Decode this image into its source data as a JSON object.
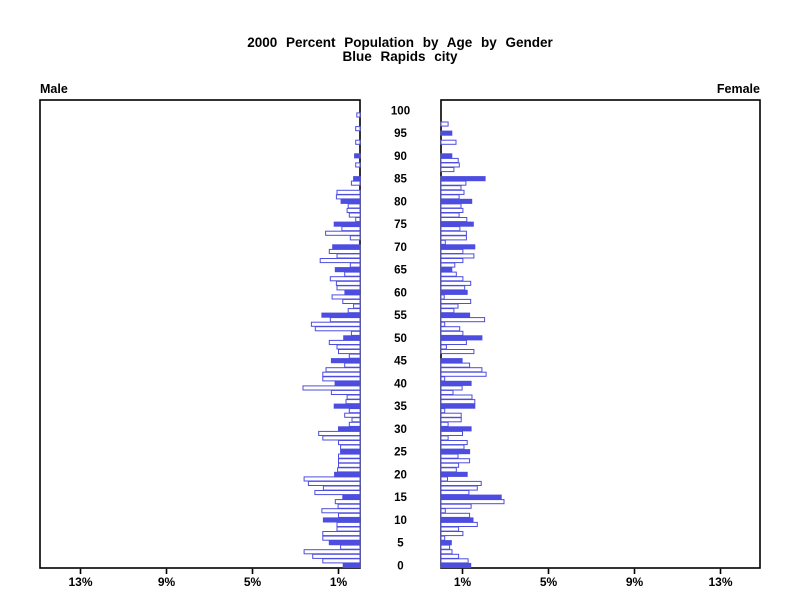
{
  "title": {
    "line1": "2000 Percent Population by Age by Gender",
    "line2": "Blue Rapids city"
  },
  "panels": {
    "left_header": "Male",
    "right_header": "Female"
  },
  "axes": {
    "age_tick_min": 0,
    "age_tick_max": 100,
    "age_tick_step": 5,
    "pct_ticks": [
      1,
      5,
      9,
      13
    ],
    "pct_tick_labels": [
      "1%",
      "5%",
      "9%",
      "13%"
    ]
  },
  "colors": {
    "bar_blue": "#4d4de0",
    "hollow_fill": "#ffffff",
    "axis_black": "#000000",
    "background": "#ffffff"
  },
  "chart_data": {
    "type": "bar",
    "subtype": "population-pyramid",
    "title": "2000 Percent Population by Age by Gender",
    "subtitle": "Blue Rapids city",
    "x_axis": {
      "unit": "percent of population",
      "ticks_pct": [
        1,
        5,
        9,
        13
      ],
      "max_pct": 14.9,
      "grid": false
    },
    "y_axis": {
      "label": "single year of age",
      "min": 0,
      "max": 100,
      "tick_step": 5
    },
    "bar_style": {
      "filled_every": 5,
      "filled_color": "#4d4de0",
      "hollow_outline": "#4d4de0",
      "hollow_fill": "#ffffff"
    },
    "legend": "none",
    "series": [
      {
        "name": "Male",
        "side": "left",
        "ages": "index = age 0..100, value = percent of total population",
        "values": [
          0.78,
          1.73,
          2.2,
          2.6,
          0.9,
          1.43,
          1.73,
          1.73,
          1.07,
          1.07,
          1.7,
          1.0,
          1.77,
          1.02,
          1.15,
          0.8,
          2.1,
          1.7,
          2.4,
          2.6,
          1.18,
          1.04,
          1.0,
          1.0,
          1.0,
          0.9,
          0.9,
          1.0,
          1.73,
          1.92,
          1.0,
          0.5,
          0.37,
          0.71,
          0.5,
          1.2,
          0.65,
          0.6,
          1.33,
          2.65,
          1.16,
          1.73,
          1.73,
          1.58,
          0.71,
          1.33,
          0.5,
          1.0,
          1.07,
          1.43,
          0.76,
          0.4,
          2.08,
          2.26,
          1.38,
          1.77,
          0.55,
          0.3,
          0.8,
          1.3,
          0.7,
          1.07,
          1.1,
          1.38,
          0.71,
          1.15,
          0.45,
          1.85,
          1.07,
          1.43,
          1.27,
          0,
          0.45,
          1.6,
          0.84,
          1.2,
          0.2,
          0.5,
          0.6,
          0.55,
          0.88,
          1.1,
          1.07,
          0,
          0.4,
          0.3,
          0,
          0,
          0.2,
          0,
          0.25,
          0,
          0,
          0.2,
          0,
          0,
          0.2,
          0,
          0,
          0.15,
          0
        ]
      },
      {
        "name": "Female",
        "side": "right",
        "ages": "index = age 0..100, value = percent of total population",
        "values": [
          1.38,
          1.26,
          0.82,
          0.51,
          0.4,
          0.48,
          0.17,
          1.02,
          0.82,
          1.69,
          1.49,
          1.33,
          0.2,
          1.4,
          2.93,
          2.8,
          1.3,
          1.69,
          1.87,
          0.3,
          1.22,
          0.71,
          0.82,
          1.33,
          0.79,
          1.33,
          1.07,
          1.22,
          0.33,
          1.0,
          1.4,
          0.33,
          0.94,
          0.94,
          0.17,
          1.57,
          1.57,
          1.44,
          0.56,
          0.98,
          1.4,
          0.17,
          2.1,
          1.9,
          1.33,
          0.98,
          0,
          1.53,
          0.25,
          1.18,
          1.9,
          1.02,
          0.87,
          0.17,
          2.03,
          1.33,
          0.6,
          0.79,
          1.38,
          0.15,
          1.22,
          1.1,
          1.38,
          1.02,
          0.71,
          0.5,
          0.64,
          1.02,
          1.53,
          1.02,
          1.57,
          0.2,
          1.18,
          1.18,
          0.88,
          1.5,
          1.2,
          0.84,
          1.02,
          0.93,
          1.43,
          0.84,
          1.07,
          0.93,
          1.16,
          2.05,
          0,
          0.6,
          0.85,
          0.8,
          0.5,
          0,
          0,
          0.7,
          0,
          0.5,
          0,
          0.33,
          0,
          0,
          0
        ]
      }
    ]
  }
}
